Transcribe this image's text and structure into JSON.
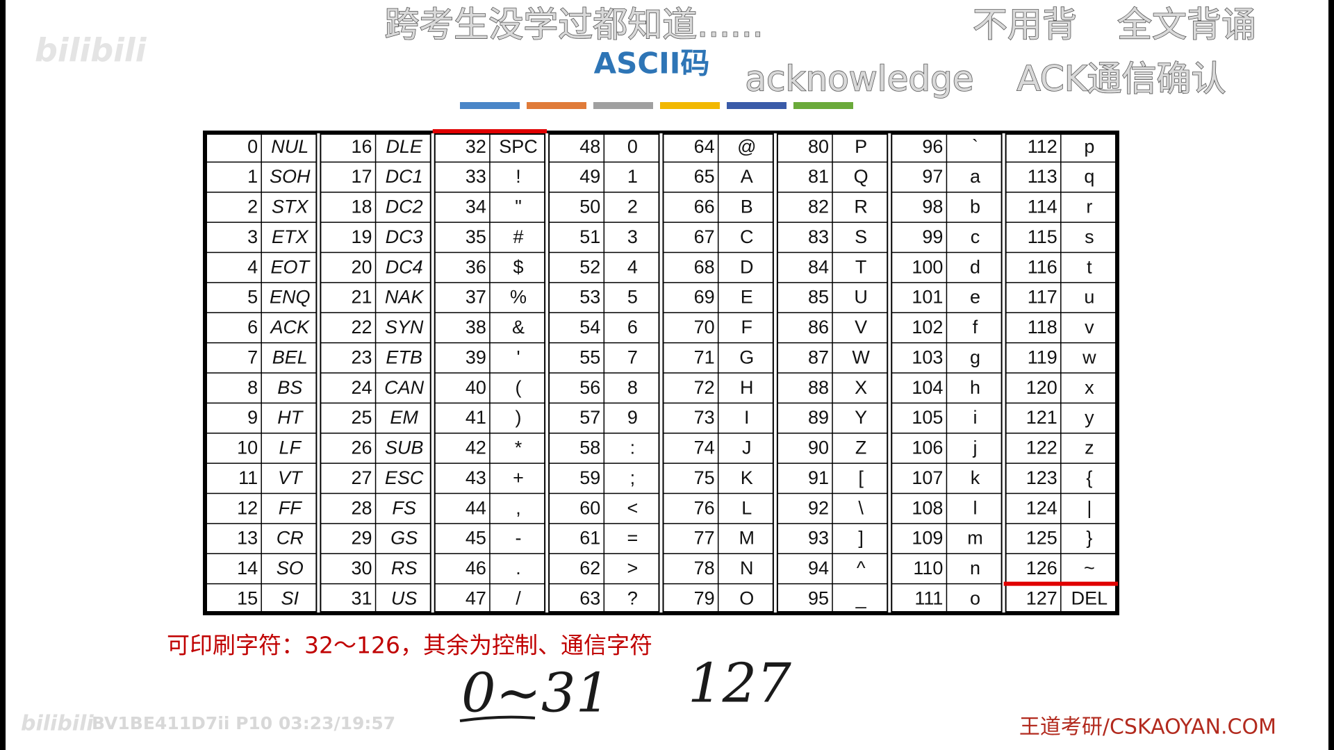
{
  "header": {
    "subtitle": "跨考生没学过都知道......",
    "hint_left": "不用背",
    "hint_right": "全文背诵",
    "title": "ASCII码",
    "term": "acknowledge",
    "term_meaning": "ACK通信确认"
  },
  "watermark": {
    "logo": "bilibili",
    "video_info": "BV1BE411D7ii P10 03:23/19:57"
  },
  "table": {
    "columns": [
      {
        "rows": [
          [
            0,
            "NUL"
          ],
          [
            1,
            "SOH"
          ],
          [
            2,
            "STX"
          ],
          [
            3,
            "ETX"
          ],
          [
            4,
            "EOT"
          ],
          [
            5,
            "ENQ"
          ],
          [
            6,
            "ACK"
          ],
          [
            7,
            "BEL"
          ],
          [
            8,
            "BS"
          ],
          [
            9,
            "HT"
          ],
          [
            10,
            "LF"
          ],
          [
            11,
            "VT"
          ],
          [
            12,
            "FF"
          ],
          [
            13,
            "CR"
          ],
          [
            14,
            "SO"
          ],
          [
            15,
            "SI"
          ]
        ]
      },
      {
        "rows": [
          [
            16,
            "DLE"
          ],
          [
            17,
            "DC1"
          ],
          [
            18,
            "DC2"
          ],
          [
            19,
            "DC3"
          ],
          [
            20,
            "DC4"
          ],
          [
            21,
            "NAK"
          ],
          [
            22,
            "SYN"
          ],
          [
            23,
            "ETB"
          ],
          [
            24,
            "CAN"
          ],
          [
            25,
            "EM"
          ],
          [
            26,
            "SUB"
          ],
          [
            27,
            "ESC"
          ],
          [
            28,
            "FS"
          ],
          [
            29,
            "GS"
          ],
          [
            30,
            "RS"
          ],
          [
            31,
            "US"
          ]
        ]
      },
      {
        "rows": [
          [
            32,
            "SPC"
          ],
          [
            33,
            "!"
          ],
          [
            34,
            "\""
          ],
          [
            35,
            "#"
          ],
          [
            36,
            "$"
          ],
          [
            37,
            "%"
          ],
          [
            38,
            "&"
          ],
          [
            39,
            "'"
          ],
          [
            40,
            "("
          ],
          [
            41,
            ")"
          ],
          [
            42,
            "*"
          ],
          [
            43,
            "+"
          ],
          [
            44,
            ","
          ],
          [
            45,
            "-"
          ],
          [
            46,
            "."
          ],
          [
            47,
            "/"
          ]
        ]
      },
      {
        "rows": [
          [
            48,
            "0"
          ],
          [
            49,
            "1"
          ],
          [
            50,
            "2"
          ],
          [
            51,
            "3"
          ],
          [
            52,
            "4"
          ],
          [
            53,
            "5"
          ],
          [
            54,
            "6"
          ],
          [
            55,
            "7"
          ],
          [
            56,
            "8"
          ],
          [
            57,
            "9"
          ],
          [
            58,
            ":"
          ],
          [
            59,
            ";"
          ],
          [
            60,
            "<"
          ],
          [
            61,
            "="
          ],
          [
            62,
            ">"
          ],
          [
            63,
            "?"
          ]
        ]
      },
      {
        "rows": [
          [
            64,
            "@"
          ],
          [
            65,
            "A"
          ],
          [
            66,
            "B"
          ],
          [
            67,
            "C"
          ],
          [
            68,
            "D"
          ],
          [
            69,
            "E"
          ],
          [
            70,
            "F"
          ],
          [
            71,
            "G"
          ],
          [
            72,
            "H"
          ],
          [
            73,
            "I"
          ],
          [
            74,
            "J"
          ],
          [
            75,
            "K"
          ],
          [
            76,
            "L"
          ],
          [
            77,
            "M"
          ],
          [
            78,
            "N"
          ],
          [
            79,
            "O"
          ]
        ]
      },
      {
        "rows": [
          [
            80,
            "P"
          ],
          [
            81,
            "Q"
          ],
          [
            82,
            "R"
          ],
          [
            83,
            "S"
          ],
          [
            84,
            "T"
          ],
          [
            85,
            "U"
          ],
          [
            86,
            "V"
          ],
          [
            87,
            "W"
          ],
          [
            88,
            "X"
          ],
          [
            89,
            "Y"
          ],
          [
            90,
            "Z"
          ],
          [
            91,
            "["
          ],
          [
            92,
            "\\"
          ],
          [
            93,
            "]"
          ],
          [
            94,
            "^"
          ],
          [
            95,
            "_"
          ]
        ]
      },
      {
        "rows": [
          [
            96,
            "`"
          ],
          [
            97,
            "a"
          ],
          [
            98,
            "b"
          ],
          [
            99,
            "c"
          ],
          [
            100,
            "d"
          ],
          [
            101,
            "e"
          ],
          [
            102,
            "f"
          ],
          [
            103,
            "g"
          ],
          [
            104,
            "h"
          ],
          [
            105,
            "i"
          ],
          [
            106,
            "j"
          ],
          [
            107,
            "k"
          ],
          [
            108,
            "l"
          ],
          [
            109,
            "m"
          ],
          [
            110,
            "n"
          ],
          [
            111,
            "o"
          ]
        ]
      },
      {
        "rows": [
          [
            112,
            "p"
          ],
          [
            113,
            "q"
          ],
          [
            114,
            "r"
          ],
          [
            115,
            "s"
          ],
          [
            116,
            "t"
          ],
          [
            117,
            "u"
          ],
          [
            118,
            "v"
          ],
          [
            119,
            "w"
          ],
          [
            120,
            "x"
          ],
          [
            121,
            "y"
          ],
          [
            122,
            "z"
          ],
          [
            123,
            "{"
          ],
          [
            124,
            "|"
          ],
          [
            125,
            "}"
          ],
          [
            126,
            "~"
          ],
          [
            127,
            "DEL"
          ]
        ]
      }
    ]
  },
  "note": "可印刷字符：32～126，其余为控制、通信字符",
  "handwriting": [
    "0~31",
    "127"
  ],
  "footer": "王道考研/CSKAOYAN.COM"
}
